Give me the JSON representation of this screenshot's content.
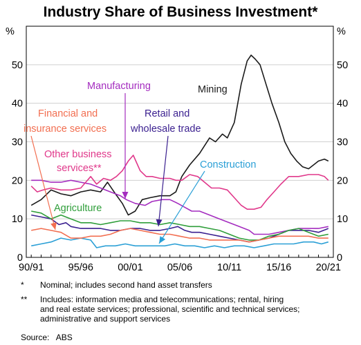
{
  "chart_data": {
    "type": "line",
    "title": "Industry Share of Business Investment*",
    "ylabel_left": "%",
    "ylabel_right": "%",
    "xlabel": "",
    "xlim": [
      1990.5,
      2021.5
    ],
    "ylim": [
      0,
      60
    ],
    "yticks": [
      0,
      10,
      20,
      30,
      40,
      50
    ],
    "xticks": [
      {
        "label": "90/91",
        "x": 1991
      },
      {
        "label": "95/96",
        "x": 1996
      },
      {
        "label": "00/01",
        "x": 2001
      },
      {
        "label": "05/06",
        "x": 2006
      },
      {
        "label": "10/11",
        "x": 2011
      },
      {
        "label": "15/16",
        "x": 2016
      },
      {
        "label": "20/21",
        "x": 2021
      }
    ],
    "grid": true,
    "series": [
      {
        "name": "Mining",
        "color": "#1a1a1a",
        "points": [
          [
            1991,
            13.5
          ],
          [
            1992,
            15
          ],
          [
            1993,
            17.5
          ],
          [
            1994,
            16.5
          ],
          [
            1995,
            16
          ],
          [
            1996,
            17
          ],
          [
            1997,
            17.5
          ],
          [
            1998,
            17
          ],
          [
            1998.7,
            19.5
          ],
          [
            1999.5,
            16.5
          ],
          [
            2000.2,
            14
          ],
          [
            2000.8,
            11
          ],
          [
            2001.5,
            12
          ],
          [
            2002.2,
            15
          ],
          [
            2003,
            15.5
          ],
          [
            2004,
            16
          ],
          [
            2005,
            16
          ],
          [
            2005.6,
            17
          ],
          [
            2006.2,
            21
          ],
          [
            2007,
            24
          ],
          [
            2008,
            27
          ],
          [
            2009,
            31
          ],
          [
            2009.6,
            30
          ],
          [
            2010.3,
            32
          ],
          [
            2010.8,
            31
          ],
          [
            2011.5,
            35
          ],
          [
            2012.2,
            45
          ],
          [
            2012.8,
            51
          ],
          [
            2013.2,
            52.5
          ],
          [
            2013.6,
            51.5
          ],
          [
            2014.1,
            50
          ],
          [
            2014.7,
            45
          ],
          [
            2015.3,
            40
          ],
          [
            2016,
            35
          ],
          [
            2016.6,
            30
          ],
          [
            2017.2,
            27
          ],
          [
            2017.8,
            25
          ],
          [
            2018.4,
            23.5
          ],
          [
            2019,
            23
          ],
          [
            2019.5,
            24
          ],
          [
            2020,
            25
          ],
          [
            2020.6,
            25.5
          ],
          [
            2021,
            25
          ]
        ]
      },
      {
        "name": "Manufacturing",
        "color": "#a42cbf",
        "points": [
          [
            1991,
            20
          ],
          [
            1992,
            20
          ],
          [
            1993,
            19.5
          ],
          [
            1994,
            19.5
          ],
          [
            1995,
            20
          ],
          [
            1996,
            19.5
          ],
          [
            1997,
            19
          ],
          [
            1998,
            18
          ],
          [
            1999,
            17
          ],
          [
            2000,
            16
          ],
          [
            2000.6,
            15
          ],
          [
            2001.5,
            14
          ],
          [
            2002.5,
            13.5
          ],
          [
            2003.2,
            14.5
          ],
          [
            2004.2,
            15
          ],
          [
            2005,
            15
          ],
          [
            2005.8,
            14
          ],
          [
            2006.5,
            13
          ],
          [
            2007.2,
            12
          ],
          [
            2008,
            12
          ],
          [
            2009,
            11
          ],
          [
            2010,
            10
          ],
          [
            2011,
            9
          ],
          [
            2012,
            8
          ],
          [
            2013,
            7
          ],
          [
            2013.5,
            6
          ],
          [
            2014,
            6
          ],
          [
            2015,
            6
          ],
          [
            2016,
            6.5
          ],
          [
            2017,
            7
          ],
          [
            2018,
            7.5
          ],
          [
            2019,
            7.5
          ],
          [
            2020,
            7.5
          ],
          [
            2021,
            8
          ]
        ]
      },
      {
        "name": "Retail and wholesale trade",
        "color": "#3a1f8f",
        "points": [
          [
            1991,
            11
          ],
          [
            1992,
            10.5
          ],
          [
            1993,
            10
          ],
          [
            1993.8,
            8.5
          ],
          [
            1994.5,
            9
          ],
          [
            1995,
            8
          ],
          [
            1996,
            7.5
          ],
          [
            1997,
            7.5
          ],
          [
            1998,
            7.5
          ],
          [
            1999,
            7
          ],
          [
            2000,
            7
          ],
          [
            2001,
            7.5
          ],
          [
            2002,
            7.5
          ],
          [
            2003,
            7
          ],
          [
            2004,
            7
          ],
          [
            2005,
            7.5
          ],
          [
            2005.8,
            8
          ],
          [
            2006.5,
            7
          ],
          [
            2007.2,
            6.5
          ],
          [
            2008,
            6.5
          ],
          [
            2009,
            6
          ],
          [
            2010,
            5.5
          ],
          [
            2011,
            5
          ],
          [
            2012,
            4.5
          ],
          [
            2013,
            4
          ],
          [
            2014,
            4.5
          ],
          [
            2015,
            5
          ],
          [
            2016,
            6
          ],
          [
            2017,
            7
          ],
          [
            2018,
            7
          ],
          [
            2019,
            7
          ],
          [
            2020,
            6.5
          ],
          [
            2021,
            7.5
          ]
        ]
      },
      {
        "name": "Agriculture",
        "color": "#2f9e3a",
        "points": [
          [
            1991,
            12
          ],
          [
            1992,
            11.5
          ],
          [
            1993,
            10
          ],
          [
            1994,
            11
          ],
          [
            1995,
            10
          ],
          [
            1996,
            9
          ],
          [
            1997,
            9
          ],
          [
            1998,
            8.5
          ],
          [
            1999,
            9
          ],
          [
            2000,
            9.5
          ],
          [
            2001,
            9.5
          ],
          [
            2002,
            9
          ],
          [
            2003,
            9
          ],
          [
            2004,
            8.5
          ],
          [
            2005,
            9
          ],
          [
            2006,
            8.5
          ],
          [
            2007,
            8
          ],
          [
            2008,
            8
          ],
          [
            2009,
            7.5
          ],
          [
            2010,
            7
          ],
          [
            2011,
            6
          ],
          [
            2012,
            5
          ],
          [
            2013,
            4.5
          ],
          [
            2014,
            4.5
          ],
          [
            2015,
            5.5
          ],
          [
            2016,
            6
          ],
          [
            2017,
            7
          ],
          [
            2018,
            7.5
          ],
          [
            2019,
            6.5
          ],
          [
            2020,
            5.5
          ],
          [
            2021,
            6
          ]
        ]
      },
      {
        "name": "Construction",
        "color": "#2a9fd6",
        "points": [
          [
            1991,
            3
          ],
          [
            1992,
            3.5
          ],
          [
            1993,
            4
          ],
          [
            1994,
            5
          ],
          [
            1995,
            4.5
          ],
          [
            1996,
            5
          ],
          [
            1997,
            4.5
          ],
          [
            1997.6,
            2.5
          ],
          [
            1998.5,
            3
          ],
          [
            1999.5,
            3
          ],
          [
            2000.5,
            3.5
          ],
          [
            2001.5,
            3
          ],
          [
            2002.5,
            3
          ],
          [
            2003.5,
            3
          ],
          [
            2004.5,
            3
          ],
          [
            2005.5,
            3.5
          ],
          [
            2006.5,
            3
          ],
          [
            2007.5,
            3
          ],
          [
            2008.5,
            2.5
          ],
          [
            2009.5,
            3
          ],
          [
            2010.5,
            2.5
          ],
          [
            2011.5,
            3
          ],
          [
            2012.5,
            3
          ],
          [
            2013.5,
            2.5
          ],
          [
            2014.5,
            3
          ],
          [
            2015.5,
            3.5
          ],
          [
            2016.5,
            3.5
          ],
          [
            2017.5,
            3.5
          ],
          [
            2018.5,
            4
          ],
          [
            2019.5,
            4
          ],
          [
            2020.3,
            3.5
          ],
          [
            2021,
            4
          ]
        ]
      },
      {
        "name": "Financial and insurance services",
        "color": "#f26e50",
        "points": [
          [
            1991,
            7
          ],
          [
            1992,
            7.5
          ],
          [
            1993,
            7
          ],
          [
            1994,
            6.5
          ],
          [
            1995,
            5
          ],
          [
            1996,
            5
          ],
          [
            1997,
            5.5
          ],
          [
            1998,
            5.5
          ],
          [
            1999,
            6
          ],
          [
            2000,
            7
          ],
          [
            2001,
            7.5
          ],
          [
            2002,
            7
          ],
          [
            2003,
            6.5
          ],
          [
            2004,
            6
          ],
          [
            2005,
            6
          ],
          [
            2006,
            5.5
          ],
          [
            2007,
            5
          ],
          [
            2008,
            5
          ],
          [
            2009,
            4.5
          ],
          [
            2010,
            4.5
          ],
          [
            2011,
            4.5
          ],
          [
            2012,
            4.5
          ],
          [
            2013,
            4
          ],
          [
            2014,
            4.5
          ],
          [
            2015,
            5
          ],
          [
            2016,
            5.5
          ],
          [
            2017,
            5.5
          ],
          [
            2018,
            5.5
          ],
          [
            2019,
            5.5
          ],
          [
            2020,
            5
          ],
          [
            2021,
            5
          ]
        ]
      },
      {
        "name": "Other business services**",
        "color": "#e0378a",
        "points": [
          [
            1991,
            18.5
          ],
          [
            1991.6,
            17
          ],
          [
            1992.2,
            17.5
          ],
          [
            1993,
            18
          ],
          [
            1994,
            17.5
          ],
          [
            1995,
            17.5
          ],
          [
            1996,
            18
          ],
          [
            1997,
            21
          ],
          [
            1997.6,
            19
          ],
          [
            1998.3,
            20.5
          ],
          [
            1999,
            20
          ],
          [
            1999.6,
            21
          ],
          [
            2000.2,
            22.5
          ],
          [
            2000.8,
            25
          ],
          [
            2001.3,
            26.5
          ],
          [
            2002,
            22.5
          ],
          [
            2002.6,
            21
          ],
          [
            2003.2,
            21
          ],
          [
            2004,
            20.5
          ],
          [
            2005,
            20.5
          ],
          [
            2005.6,
            20
          ],
          [
            2006.2,
            20
          ],
          [
            2007,
            21.5
          ],
          [
            2007.8,
            21
          ],
          [
            2008.5,
            19.5
          ],
          [
            2009.2,
            18
          ],
          [
            2010,
            18
          ],
          [
            2010.8,
            17.5
          ],
          [
            2011.5,
            15.5
          ],
          [
            2012.2,
            13.5
          ],
          [
            2012.8,
            12.5
          ],
          [
            2013.5,
            12.5
          ],
          [
            2014.2,
            13
          ],
          [
            2014.8,
            15
          ],
          [
            2015.5,
            17
          ],
          [
            2016.2,
            19
          ],
          [
            2017,
            21
          ],
          [
            2018,
            21
          ],
          [
            2019,
            21.5
          ],
          [
            2020,
            21.5
          ],
          [
            2020.6,
            21
          ],
          [
            2021,
            20
          ]
        ]
      }
    ],
    "annotations": [
      {
        "text": "Mining",
        "series": "Mining"
      },
      {
        "text": "Manufacturing",
        "series": "Manufacturing"
      },
      {
        "text": "Retail and",
        "series": "Retail and wholesale trade"
      },
      {
        "text": "wholesale trade",
        "series": "Retail and wholesale trade"
      },
      {
        "text": "Financial and",
        "series": "Financial and insurance services"
      },
      {
        "text": "insurance services",
        "series": "Financial and insurance services"
      },
      {
        "text": "Other business",
        "series": "Other business services**"
      },
      {
        "text": "services**",
        "series": "Other business services**"
      },
      {
        "text": "Construction",
        "series": "Construction"
      },
      {
        "text": "Agriculture",
        "series": "Agriculture"
      }
    ]
  },
  "footnotes": [
    {
      "marker": "*",
      "text": "Nominal; includes second hand asset transfers"
    },
    {
      "marker": "**",
      "text": "Includes: information media and telecommunications; rental, hiring",
      "continued": [
        "and real estate services; professional, scientific and technical services;",
        "administrative and support services"
      ]
    }
  ],
  "source": {
    "label": "Source:",
    "value": "ABS"
  }
}
